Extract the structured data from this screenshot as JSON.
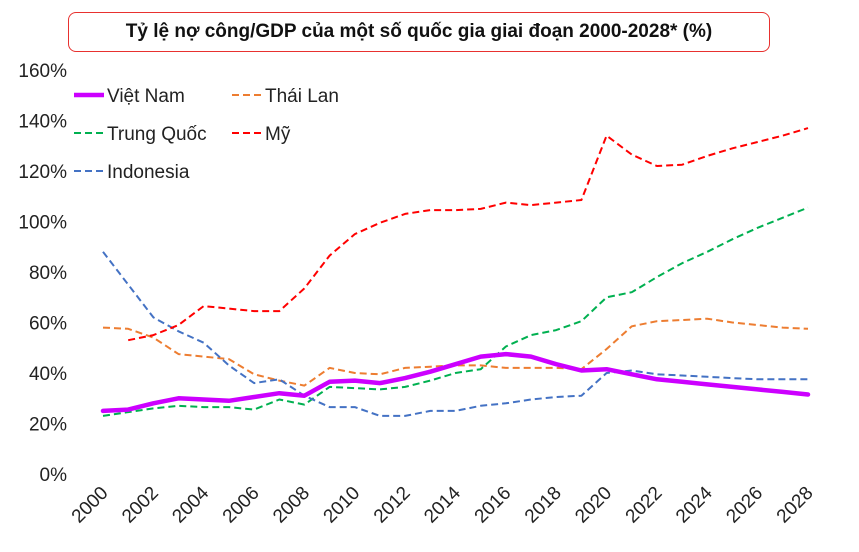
{
  "chart_data": {
    "type": "line",
    "title": "Tỷ lệ nợ công/GDP của một số quốc gia giai đoạn 2000-2028* (%)",
    "xlabel": "",
    "ylabel": "",
    "ylim": [
      0,
      160
    ],
    "grid": false,
    "legend_position": "top-left",
    "x": [
      2000,
      2001,
      2002,
      2003,
      2004,
      2005,
      2006,
      2007,
      2008,
      2009,
      2010,
      2011,
      2012,
      2013,
      2014,
      2015,
      2016,
      2017,
      2018,
      2019,
      2020,
      2021,
      2022,
      2023,
      2024,
      2025,
      2026,
      2027,
      2028
    ],
    "x_tick_labels": [
      "2000",
      "2002",
      "2004",
      "2006",
      "2008",
      "2010",
      "2012",
      "2014",
      "2016",
      "2018",
      "2020",
      "2022",
      "2024",
      "2026",
      "2028"
    ],
    "y_tick_labels": [
      "0%",
      "20%",
      "40%",
      "60%",
      "80%",
      "100%",
      "120%",
      "140%",
      "160%"
    ],
    "series": [
      {
        "name": "Việt Nam",
        "color": "#cc00ff",
        "style": "solid",
        "values": [
          25,
          25.5,
          28,
          30,
          29.5,
          29,
          30.5,
          32,
          31,
          36.5,
          37,
          36,
          38,
          40.5,
          43.5,
          46.5,
          47.5,
          46.5,
          43.5,
          41,
          41.5,
          39.5,
          37.5,
          36.5,
          35.5,
          34.5,
          33.5,
          32.5,
          31.5
        ]
      },
      {
        "name": "Thái Lan",
        "color": "#ed7d31",
        "style": "dashed",
        "values": [
          58,
          57.5,
          54,
          47.5,
          46.5,
          45.5,
          39.5,
          37,
          35,
          42,
          40,
          39.5,
          42,
          42.5,
          43,
          43,
          42,
          42,
          42,
          41.5,
          49.5,
          58.5,
          60.5,
          61,
          61.5,
          60,
          59,
          58,
          57.5
        ]
      },
      {
        "name": "Trung Quốc",
        "color": "#00b050",
        "style": "dashed",
        "values": [
          23,
          24.5,
          26,
          27,
          26.5,
          26.5,
          25.5,
          29.5,
          27.5,
          34.5,
          34,
          33.5,
          34.5,
          37,
          40,
          41.5,
          50.5,
          55,
          57,
          60.5,
          70,
          72,
          78,
          83.5,
          88,
          93,
          97.5,
          101.5,
          105.5
        ]
      },
      {
        "name": "Mỹ",
        "color": "#ff0000",
        "style": "dashed",
        "values": [
          null,
          53,
          55,
          59,
          66.5,
          65.5,
          64.5,
          64.5,
          73.5,
          86.5,
          95,
          99.5,
          103,
          104.5,
          104.5,
          105,
          107.5,
          106.5,
          107.5,
          108.5,
          134,
          126.5,
          122,
          122.5,
          126,
          129,
          131.5,
          134,
          137
        ]
      },
      {
        "name": "Indonesia",
        "color": "#4472c4",
        "style": "dashed",
        "values": [
          88,
          75,
          62,
          56.5,
          52,
          43,
          36,
          37.5,
          31,
          26.5,
          26.5,
          23,
          23,
          25,
          25,
          27,
          28,
          29.5,
          30.5,
          31,
          40,
          41,
          39.5,
          39,
          38.5,
          38,
          37.5,
          37.5,
          37.5
        ]
      }
    ],
    "legend": [
      {
        "label": "Việt Nam",
        "series": 0
      },
      {
        "label": "Thái Lan",
        "series": 1
      },
      {
        "label": "Trung Quốc",
        "series": 2
      },
      {
        "label": "Mỹ",
        "series": 3
      },
      {
        "label": "Indonesia",
        "series": 4
      }
    ]
  }
}
